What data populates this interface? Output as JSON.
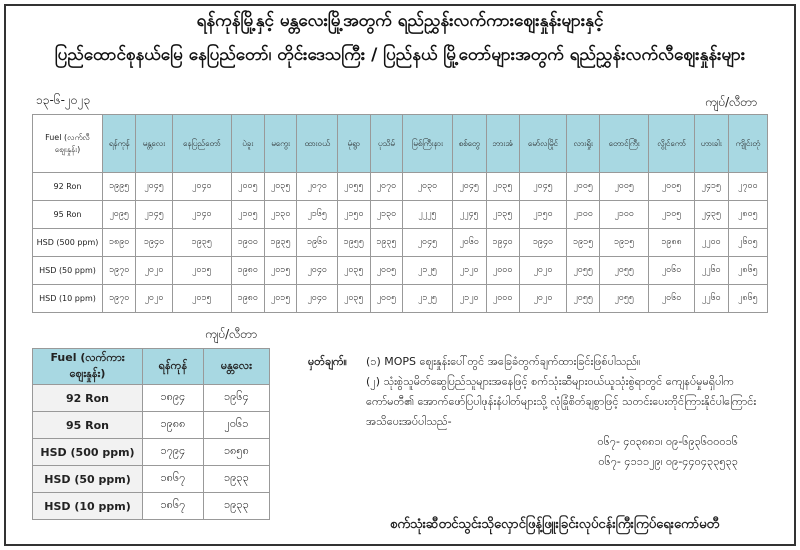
{
  "title_line1": "ရန်ကုန်မြို့နှင့် မန္တလေးမြို့အတွက် ရည်ညွှန်းလက်ကားဈေးနှုန်းများနှင့်",
  "title_line2": "ပြည်ထောင်စုနယ်မြေ နေပြည်တော်၊ တိုင်းဒေသကြီး / ပြည်နယ် မြို့တော်များအတွက် ရည်ညွှန်းလက်လီဈေးနှုန်းများ",
  "date": "၁၃-၆-၂၀၂၃",
  "unit": "ကျပ်/လီတာ",
  "main_table": {
    "fuel_header": "Fuel (လက်လီဈေးနှုန်း)",
    "cities": [
      "ရန်ကုန်",
      "မန္တလေး",
      "နေပြည်တော်",
      "ပဲခူး",
      "မကွေး",
      "ထားဝယ်",
      "မုံရွာ",
      "ပုသိမ်",
      "မြစ်ကြီးနား",
      "စစ်တွေ",
      "ဘားအံ",
      "မော်လမြိုင်",
      "လားရှိုး",
      "တောင်ကြီး",
      "လွိုင်ကော်",
      "ဟားခါး",
      "ကျိုင်းတုံ"
    ],
    "rows": [
      {
        "fuel": "92 Ron",
        "values": [
          "၁၉၉၅",
          "၂၀၄၅",
          "၂၀၄၀",
          "၂၀၀၅",
          "၂၀၃၅",
          "၂၀၇၀",
          "၂၀၅၅",
          "၂၀၇၀",
          "၂၀၃၀",
          "၂၀၄၅",
          "၂၀၃၅",
          "၂၀၄၅",
          "၂၀၀၅",
          "၂၀၀၅",
          "၂၀၀၅",
          "၂၄၁၅",
          "၂၇၀၀"
        ]
      },
      {
        "fuel": "95 Ron",
        "values": [
          "၂၀၉၅",
          "၂၁၄၅",
          "၂၁၄၀",
          "၂၁၀၅",
          "၂၁၃၀",
          "၂၁၆၅",
          "၂၁၅၀",
          "၂၁၃၀",
          "၂၂၂၅",
          "၂၂၄၅",
          "၂၁၃၅",
          "၂၁၅၀",
          "၂၁၀၀",
          "၂၁၀၀",
          "၂၁၀၅",
          "၂၄၃၅",
          "၂၈၀၅"
        ]
      },
      {
        "fuel": "HSD (500 ppm)",
        "values": [
          "၁၈၉၀",
          "၁၉၄၀",
          "၁၉၃၅",
          "၁၉၀၀",
          "၁၉၃၅",
          "၁၉၆၀",
          "၁၉၅၅",
          "၁၉၃၅",
          "၂၀၄၅",
          "၂၀၆၀",
          "၁၉၄၀",
          "၁၉၄၀",
          "၁၉၁၅",
          "၁၉၁၅",
          "၁၉၈၈",
          "၂၂၀၀",
          "၂၆၀၅"
        ]
      },
      {
        "fuel": "HSD (50 ppm)",
        "values": [
          "၁၉၇၀",
          "၂၀၂၀",
          "၂၀၁၅",
          "၁၉၈၀",
          "၂၀၁၅",
          "၂၀၄၀",
          "၂၀၃၅",
          "၂၀၀၅",
          "၂၁၂၅",
          "၂၁၂၀",
          "၂၀၀၀",
          "၂၀၂၀",
          "၂၀၅၅",
          "၂၀၅၅",
          "၂၀၆၀",
          "၂၂၆၀",
          "၂၈၆၅"
        ]
      },
      {
        "fuel": "HSD (10 ppm)",
        "values": [
          "၁၉၇၀",
          "၂၀၂၀",
          "၂၀၁၅",
          "၁၉၈၀",
          "၂၀၁၅",
          "၂၀၄၀",
          "၂၀၃၅",
          "၂၀၀၅",
          "၂၁၂၅",
          "၂၁၂၀",
          "၂၀၀၀",
          "၂၀၂၀",
          "၂၀၅၅",
          "၂၀၅၅",
          "၂၀၆၀",
          "၂၂၆၀",
          "၂၈၆၅"
        ]
      }
    ]
  },
  "small_table": {
    "unit": "ကျပ်/လီတာ",
    "fuel_header": "Fuel (လက်ကားဈေးနှုန်း)",
    "cities": [
      "ရန်ကုန်",
      "မန္တလေး"
    ],
    "rows": [
      {
        "fuel": "92 Ron",
        "values": [
          "၁၈၉၄",
          "၁၉၆၄"
        ]
      },
      {
        "fuel": "95 Ron",
        "values": [
          "၁၉၈၈",
          "၂၀၆၁"
        ]
      },
      {
        "fuel": "HSD (500 ppm)",
        "values": [
          "၁၇၉၄",
          "၁၈၅၈"
        ]
      },
      {
        "fuel": "HSD (50 ppm)",
        "values": [
          "၁၈၆၇",
          "၁၉၃၃"
        ]
      },
      {
        "fuel": "HSD (10 ppm)",
        "values": [
          "၁၈၆၇",
          "၁၉၃၃"
        ]
      }
    ]
  },
  "notes": {
    "label": "မှတ်ချက်။",
    "note1": "(၁) MOPS ဈေးနှုန်းပေါ်တွင် အခြေခံတွက်ချက်ထားခြင်းဖြစ်ပါသည်။",
    "note2": "(၂) သုံးစွဲသူမိတ်ဆွေပြည်သူများအနေဖြင့် စက်သုံးဆီများဝယ်ယူသုံးစွဲရာတွင် ကျေနပ်မှုမရှိပါက ကော်မတီ၏ အောက်ဖော်ပြပါဖုန်းနံပါတ်များသို့ လုံခြုံစိတ်ချစွာဖြင့် သတင်းပေးတိုင်ကြားနိုင်ပါကြောင်း အသိပေးအပ်ပါသည်-",
    "phone1": "၀၆၇- ၄၀၃၈၈၁၊ ၀၉-၆၉၃၆၀၀၀၁၆",
    "phone2": "၀၆၇- ၄၁၁၁၂၉၊ ၀၉-၄၄၀၄၃၃၅၃၃"
  },
  "footer": "စက်သုံးဆီတင်သွင်းသိုလှောင်ဖြန့်ဖြူးခြင်းလုပ်ငန်းကြီးကြပ်ရေးကော်မတီ"
}
